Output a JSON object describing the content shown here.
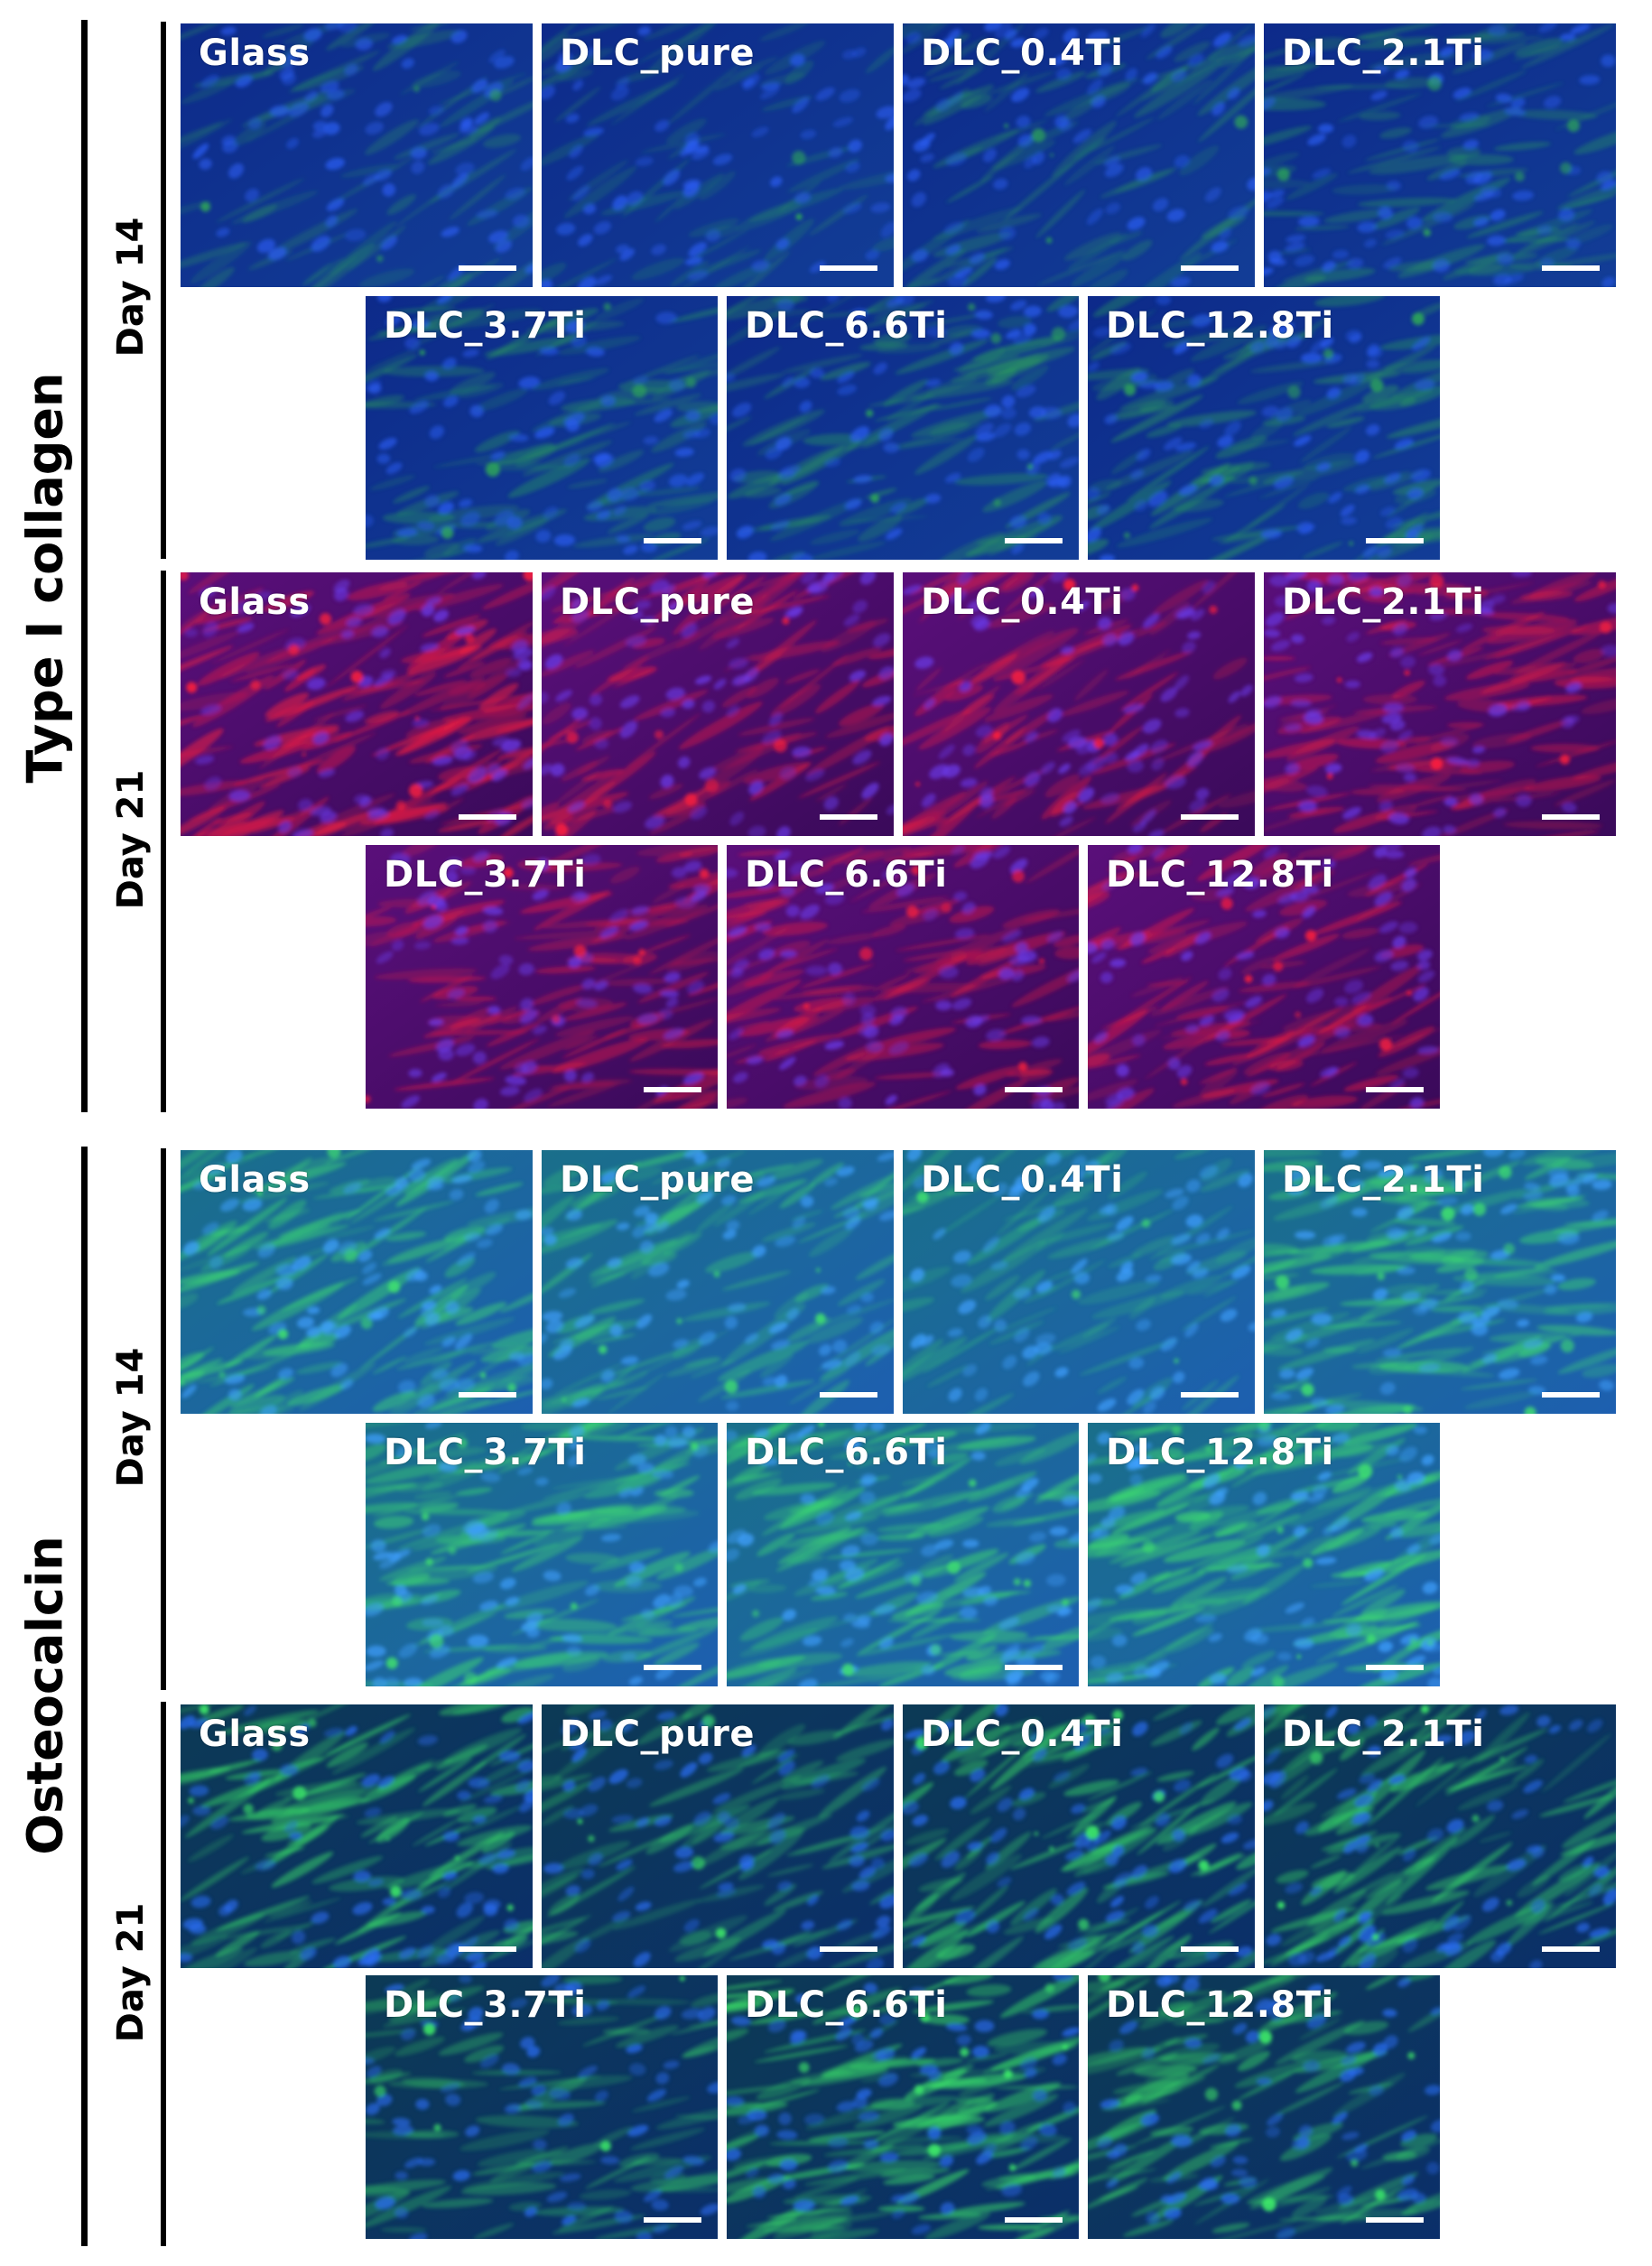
{
  "colors": {
    "nucleus_blue": "#1e3fd8",
    "collagen_red": "#e0154a",
    "osteocalcin_green": "#29d46a",
    "label_text": "#ffffff",
    "scale_bar": "#ffffff"
  },
  "groups": [
    {
      "label": "Type I collagen",
      "rows": [
        {
          "day": "Day 14",
          "panels": [
            {
              "label": "Glass",
              "stain": "collagen_d14",
              "intensity": 0.25
            },
            {
              "label": "DLC_pure",
              "stain": "collagen_d14",
              "intensity": 0.15
            },
            {
              "label": "DLC_0.4Ti",
              "stain": "collagen_d14",
              "intensity": 0.35
            },
            {
              "label": "DLC_2.1Ti",
              "stain": "collagen_d14",
              "intensity": 0.4
            },
            {
              "label": "DLC_3.7Ti",
              "stain": "collagen_d14",
              "intensity": 0.45
            },
            {
              "label": "DLC_6.6Ti",
              "stain": "collagen_d14",
              "intensity": 0.5
            },
            {
              "label": "DLC_12.8Ti",
              "stain": "collagen_d14",
              "intensity": 0.55
            }
          ]
        },
        {
          "day": "Day 21",
          "panels": [
            {
              "label": "Glass",
              "stain": "collagen_d21",
              "intensity": 0.85
            },
            {
              "label": "DLC_pure",
              "stain": "collagen_d21",
              "intensity": 0.55
            },
            {
              "label": "DLC_0.4Ti",
              "stain": "collagen_d21",
              "intensity": 0.5
            },
            {
              "label": "DLC_2.1Ti",
              "stain": "collagen_d21",
              "intensity": 0.6
            },
            {
              "label": "DLC_3.7Ti",
              "stain": "collagen_d21",
              "intensity": 0.6
            },
            {
              "label": "DLC_6.6Ti",
              "stain": "collagen_d21",
              "intensity": 0.55
            },
            {
              "label": "DLC_12.8Ti",
              "stain": "collagen_d21",
              "intensity": 0.6
            }
          ]
        }
      ]
    },
    {
      "label": "Osteocalcin",
      "rows": [
        {
          "day": "Day 14",
          "panels": [
            {
              "label": "Glass",
              "stain": "osteocalcin_d14",
              "intensity": 0.75
            },
            {
              "label": "DLC_pure",
              "stain": "osteocalcin_d14",
              "intensity": 0.5
            },
            {
              "label": "DLC_0.4Ti",
              "stain": "osteocalcin_d14",
              "intensity": 0.3
            },
            {
              "label": "DLC_2.1Ti",
              "stain": "osteocalcin_d14",
              "intensity": 0.75
            },
            {
              "label": "DLC_3.7Ti",
              "stain": "osteocalcin_d14",
              "intensity": 0.75
            },
            {
              "label": "DLC_6.6Ti",
              "stain": "osteocalcin_d14",
              "intensity": 0.8
            },
            {
              "label": "DLC_12.8Ti",
              "stain": "osteocalcin_d14",
              "intensity": 0.95
            }
          ]
        },
        {
          "day": "Day 21",
          "panels": [
            {
              "label": "Glass",
              "stain": "osteocalcin_d21",
              "intensity": 0.7
            },
            {
              "label": "DLC_pure",
              "stain": "osteocalcin_d21",
              "intensity": 0.35
            },
            {
              "label": "DLC_0.4Ti",
              "stain": "osteocalcin_d21",
              "intensity": 0.65
            },
            {
              "label": "DLC_2.1Ti",
              "stain": "osteocalcin_d21",
              "intensity": 0.6
            },
            {
              "label": "DLC_3.7Ti",
              "stain": "osteocalcin_d21",
              "intensity": 0.35
            },
            {
              "label": "DLC_6.6Ti",
              "stain": "osteocalcin_d21",
              "intensity": 0.85
            },
            {
              "label": "DLC_12.8Ti",
              "stain": "osteocalcin_d21",
              "intensity": 0.6
            }
          ]
        }
      ]
    }
  ]
}
